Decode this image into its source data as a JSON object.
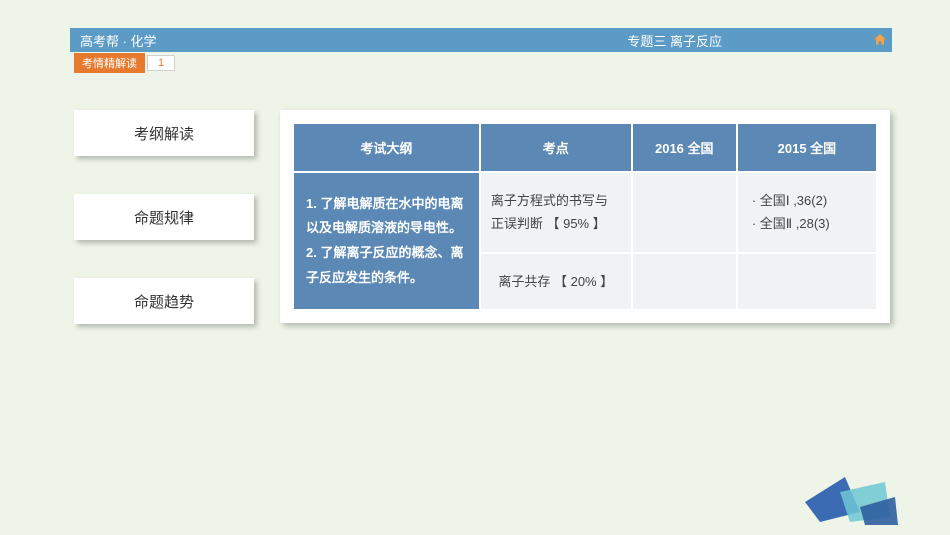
{
  "header": {
    "left": "高考帮 · 化学",
    "right": "专题三  离子反应"
  },
  "breadcrumb": {
    "label": "考情精解读",
    "page": "1"
  },
  "sidebar": {
    "items": [
      {
        "label": "考纲解读"
      },
      {
        "label": "命题规律"
      },
      {
        "label": "命题趋势"
      }
    ]
  },
  "table": {
    "columns": [
      "考试大纲",
      "考点",
      "2016 全国",
      "2015 全国"
    ],
    "col_widths": [
      "32%",
      "26%",
      "18%",
      "24%"
    ],
    "outline": "1. 了解电解质在水中的电离以及电解质溶液的导电性。\n2. 了解离子反应的概念、离子反应发生的条件。",
    "rows": [
      {
        "kaodian": "离子方程式的书写与正误判断 【 95% 】",
        "y2016": "",
        "y2015": "· 全国Ⅰ ,36(2)\n· 全国Ⅱ ,28(3)"
      },
      {
        "kaodian": "离子共存 【 20% 】",
        "y2016": "",
        "y2015": ""
      }
    ],
    "header_bg": "#5b88b4",
    "cell_bg": "#f0f2f4",
    "text_color": "#444"
  },
  "decoration": {
    "colors": [
      "#3b6cb3",
      "#6fc7d4",
      "#2d5f9e"
    ]
  }
}
